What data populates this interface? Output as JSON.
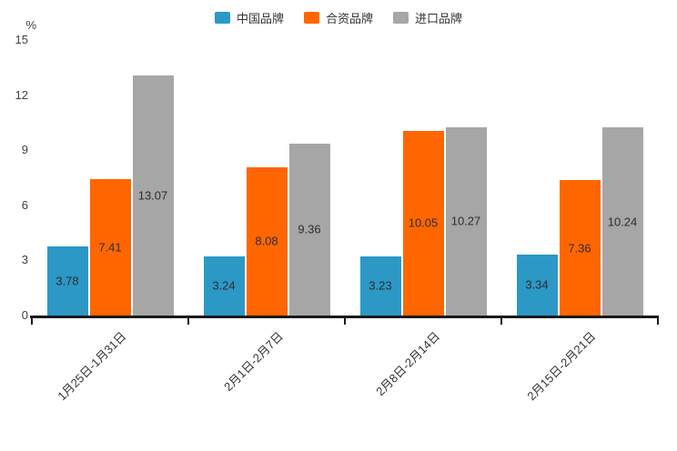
{
  "chart_data": {
    "type": "bar",
    "title": "",
    "ylabel": "%",
    "ylim": [
      0,
      15
    ],
    "y_ticks": [
      0,
      3,
      6,
      9,
      12,
      15
    ],
    "grid": false,
    "legend_position": "top-center",
    "categories": [
      "1月25日-1月31日",
      "2月1日-2月7日",
      "2月8日-2月14日",
      "2月15日-2月21日"
    ],
    "series": [
      {
        "name": "中国品牌",
        "color": "#2B98C6",
        "values": [
          3.78,
          3.24,
          3.23,
          3.34
        ]
      },
      {
        "name": "合资品牌",
        "color": "#FF6600",
        "values": [
          7.41,
          8.08,
          10.05,
          7.36
        ]
      },
      {
        "name": "进口品牌",
        "color": "#A6A6A6",
        "values": [
          13.07,
          9.36,
          10.27,
          10.24
        ]
      }
    ]
  }
}
